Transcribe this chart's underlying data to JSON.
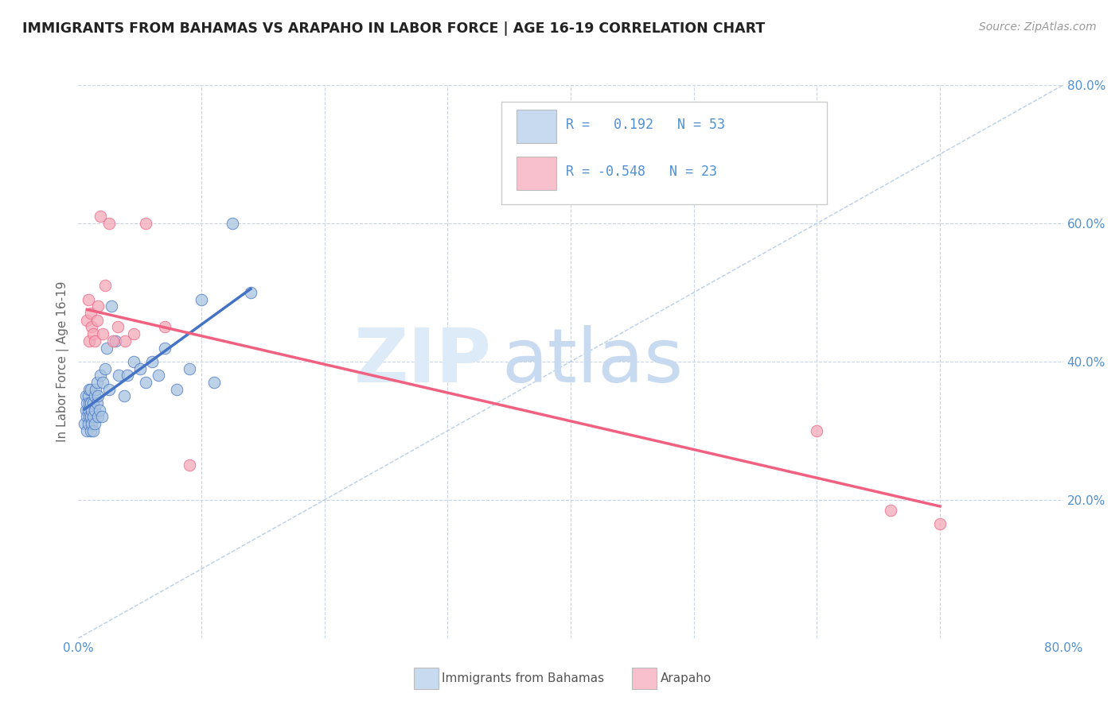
{
  "title": "IMMIGRANTS FROM BAHAMAS VS ARAPAHO IN LABOR FORCE | AGE 16-19 CORRELATION CHART",
  "source_text": "Source: ZipAtlas.com",
  "ylabel": "In Labor Force | Age 16-19",
  "xlim": [
    0.0,
    0.8
  ],
  "ylim": [
    0.0,
    0.8
  ],
  "color_bahamas": "#a8c4e0",
  "color_arapaho": "#f4a8b8",
  "line_color_bahamas": "#4472c4",
  "line_color_arapaho": "#f06080",
  "diagonal_color": "#b8cfe8",
  "background_color": "#ffffff",
  "grid_color": "#c8d4e8",
  "legend_box_color_1": "#c8daf0",
  "legend_box_color_2": "#f8c0cc",
  "legend_text_color": "#5090d0",
  "tick_color": "#5090d0",
  "title_color": "#222222",
  "ylabel_color": "#666666",
  "source_color": "#999999",
  "watermark_color_zip": "#ddeaf8",
  "watermark_color_atlas": "#c8daf0",
  "bahamas_x": [
    0.005,
    0.006,
    0.006,
    0.007,
    0.007,
    0.007,
    0.008,
    0.008,
    0.008,
    0.009,
    0.009,
    0.009,
    0.01,
    0.01,
    0.01,
    0.01,
    0.011,
    0.011,
    0.012,
    0.012,
    0.012,
    0.013,
    0.013,
    0.013,
    0.014,
    0.015,
    0.015,
    0.016,
    0.016,
    0.017,
    0.018,
    0.019,
    0.02,
    0.022,
    0.023,
    0.025,
    0.027,
    0.03,
    0.033,
    0.037,
    0.04,
    0.045,
    0.05,
    0.055,
    0.06,
    0.065,
    0.07,
    0.08,
    0.09,
    0.1,
    0.11,
    0.125,
    0.14
  ],
  "bahamas_y": [
    0.31,
    0.33,
    0.35,
    0.3,
    0.32,
    0.34,
    0.31,
    0.33,
    0.35,
    0.32,
    0.34,
    0.36,
    0.3,
    0.32,
    0.34,
    0.36,
    0.31,
    0.33,
    0.3,
    0.32,
    0.34,
    0.31,
    0.33,
    0.35,
    0.36,
    0.34,
    0.37,
    0.32,
    0.35,
    0.33,
    0.38,
    0.32,
    0.37,
    0.39,
    0.42,
    0.36,
    0.48,
    0.43,
    0.38,
    0.35,
    0.38,
    0.4,
    0.39,
    0.37,
    0.4,
    0.38,
    0.42,
    0.36,
    0.39,
    0.49,
    0.37,
    0.6,
    0.5
  ],
  "arapaho_x": [
    0.007,
    0.008,
    0.009,
    0.01,
    0.011,
    0.012,
    0.013,
    0.015,
    0.016,
    0.018,
    0.02,
    0.022,
    0.025,
    0.028,
    0.032,
    0.038,
    0.045,
    0.055,
    0.07,
    0.09,
    0.6,
    0.66,
    0.7
  ],
  "arapaho_y": [
    0.46,
    0.49,
    0.43,
    0.47,
    0.45,
    0.44,
    0.43,
    0.46,
    0.48,
    0.61,
    0.44,
    0.51,
    0.6,
    0.43,
    0.45,
    0.43,
    0.44,
    0.6,
    0.45,
    0.25,
    0.3,
    0.185,
    0.165
  ]
}
